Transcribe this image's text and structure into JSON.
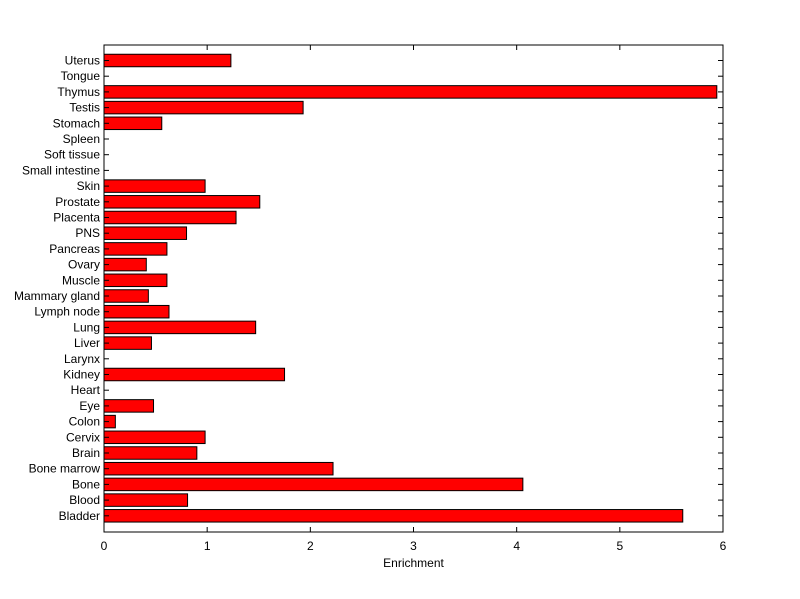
{
  "chart_data": {
    "type": "bar",
    "orientation": "horizontal",
    "title": "",
    "xlabel": "Enrichment",
    "ylabel": "",
    "xlim": [
      0,
      6
    ],
    "xticks": [
      "0",
      "1",
      "2",
      "3",
      "4",
      "5",
      "6"
    ],
    "grid": false,
    "legend": "none",
    "bar_color": "#ff0000",
    "bar_edge_color": "#000000",
    "categories": [
      "Uterus",
      "Tongue",
      "Thymus",
      "Testis",
      "Stomach",
      "Spleen",
      "Soft tissue",
      "Small intestine",
      "Skin",
      "Prostate",
      "Placenta",
      "PNS",
      "Pancreas",
      "Ovary",
      "Muscle",
      "Mammary gland",
      "Lymph node",
      "Lung",
      "Liver",
      "Larynx",
      "Kidney",
      "Heart",
      "Eye",
      "Colon",
      "Cervix",
      "Brain",
      "Bone marrow",
      "Bone",
      "Blood",
      "Bladder"
    ],
    "values": [
      1.23,
      0,
      5.94,
      1.93,
      0.56,
      0,
      0,
      0,
      0.98,
      1.51,
      1.28,
      0.8,
      0.61,
      0.41,
      0.61,
      0.43,
      0.63,
      1.47,
      0.46,
      0,
      1.75,
      0,
      0.48,
      0.11,
      0.98,
      0.9,
      2.22,
      4.06,
      0.81,
      5.61
    ]
  }
}
